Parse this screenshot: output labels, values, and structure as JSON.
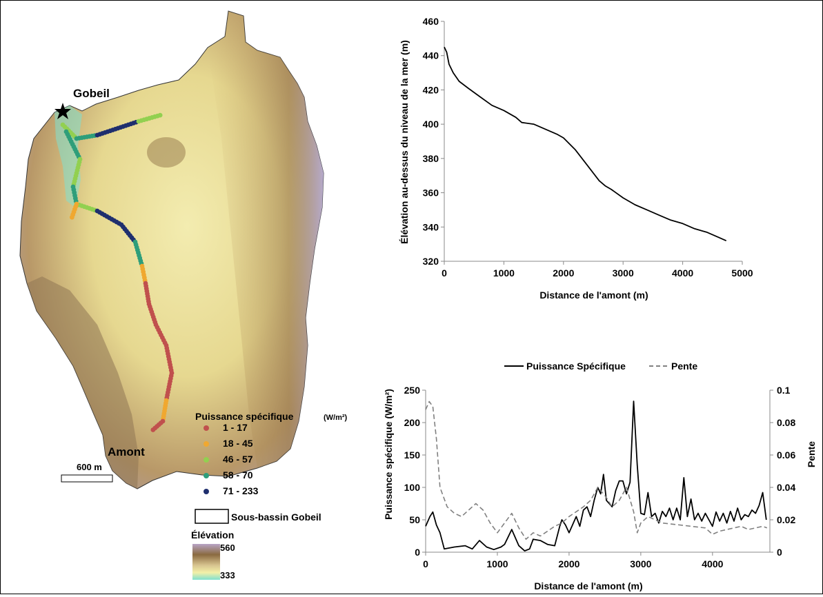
{
  "map": {
    "outlet_label": "Gobeil",
    "upstream_label": "Amont",
    "scale_label": "600 m",
    "legend": {
      "title": "Puissance spécifique",
      "unit": "(W/m²)",
      "classes": [
        {
          "label": "1 - 17",
          "color": "#c0504d"
        },
        {
          "label": "18 - 45",
          "color": "#f0a830"
        },
        {
          "label": "46 - 57",
          "color": "#92d050"
        },
        {
          "label": "58 - 70",
          "color": "#2e9e7a"
        },
        {
          "label": "71 - 233",
          "color": "#1f2f6e"
        }
      ],
      "subbasin_label": "Sous-bassin Gobeil",
      "elevation_title": "Élévation",
      "elevation_max": "560",
      "elevation_min": "333"
    }
  },
  "chart_data": [
    {
      "type": "line",
      "title": "",
      "xlabel": "Distance de l'amont (m)",
      "ylabel": "Élévation au-dessus du niveau de la mer (m)",
      "xlim": [
        0,
        5000
      ],
      "ylim": [
        320,
        460
      ],
      "xticks": [
        0,
        1000,
        2000,
        3000,
        4000,
        5000
      ],
      "yticks": [
        320,
        340,
        360,
        380,
        400,
        420,
        440,
        460
      ],
      "grid": false,
      "series": [
        {
          "color": "#000000",
          "points": [
            [
              0,
              445
            ],
            [
              40,
              442
            ],
            [
              80,
              435
            ],
            [
              150,
              430
            ],
            [
              250,
              425
            ],
            [
              400,
              421
            ],
            [
              600,
              416
            ],
            [
              800,
              411
            ],
            [
              1000,
              408
            ],
            [
              1200,
              404
            ],
            [
              1300,
              401
            ],
            [
              1500,
              400
            ],
            [
              1700,
              397
            ],
            [
              1900,
              394
            ],
            [
              2000,
              392
            ],
            [
              2200,
              385
            ],
            [
              2400,
              376
            ],
            [
              2600,
              367
            ],
            [
              2700,
              364
            ],
            [
              2800,
              362
            ],
            [
              3000,
              357
            ],
            [
              3200,
              353
            ],
            [
              3400,
              350
            ],
            [
              3600,
              347
            ],
            [
              3800,
              344
            ],
            [
              4000,
              342
            ],
            [
              4200,
              339
            ],
            [
              4400,
              337
            ],
            [
              4600,
              334
            ],
            [
              4730,
              332
            ]
          ]
        }
      ]
    },
    {
      "type": "line",
      "title": "",
      "xlabel": "Distance de l'amont (m)",
      "ylabel": "Puissance spécifique (W/m²)",
      "y2label": "Pente",
      "xlim": [
        0,
        4800
      ],
      "ylim": [
        0,
        250
      ],
      "y2lim": [
        0,
        0.1
      ],
      "xticks": [
        0,
        1000,
        2000,
        3000,
        4000
      ],
      "yticks": [
        0,
        50,
        100,
        150,
        200,
        250
      ],
      "y2ticks": [
        "0",
        "0.02",
        "0.04",
        "0.06",
        "0.08",
        "0.1"
      ],
      "legend_position": "top",
      "grid": false,
      "series": [
        {
          "name": "Puissance Spécifique",
          "axis": "left",
          "color": "#000000",
          "dash": "solid",
          "points": [
            [
              0,
              40
            ],
            [
              60,
              55
            ],
            [
              100,
              62
            ],
            [
              150,
              42
            ],
            [
              200,
              30
            ],
            [
              260,
              5
            ],
            [
              400,
              8
            ],
            [
              550,
              10
            ],
            [
              650,
              5
            ],
            [
              750,
              18
            ],
            [
              850,
              8
            ],
            [
              950,
              4
            ],
            [
              1050,
              8
            ],
            [
              1100,
              12
            ],
            [
              1200,
              35
            ],
            [
              1300,
              10
            ],
            [
              1380,
              2
            ],
            [
              1450,
              5
            ],
            [
              1500,
              20
            ],
            [
              1600,
              18
            ],
            [
              1700,
              12
            ],
            [
              1800,
              10
            ],
            [
              1870,
              40
            ],
            [
              1900,
              50
            ],
            [
              1950,
              42
            ],
            [
              2000,
              30
            ],
            [
              2100,
              55
            ],
            [
              2150,
              40
            ],
            [
              2200,
              65
            ],
            [
              2250,
              70
            ],
            [
              2300,
              55
            ],
            [
              2350,
              80
            ],
            [
              2400,
              100
            ],
            [
              2440,
              90
            ],
            [
              2480,
              120
            ],
            [
              2520,
              80
            ],
            [
              2600,
              70
            ],
            [
              2650,
              95
            ],
            [
              2700,
              110
            ],
            [
              2750,
              110
            ],
            [
              2800,
              90
            ],
            [
              2850,
              108
            ],
            [
              2900,
              233
            ],
            [
              2950,
              135
            ],
            [
              3000,
              60
            ],
            [
              3050,
              58
            ],
            [
              3100,
              92
            ],
            [
              3150,
              55
            ],
            [
              3200,
              60
            ],
            [
              3250,
              45
            ],
            [
              3300,
              63
            ],
            [
              3350,
              55
            ],
            [
              3400,
              68
            ],
            [
              3450,
              50
            ],
            [
              3500,
              68
            ],
            [
              3550,
              50
            ],
            [
              3600,
              115
            ],
            [
              3650,
              55
            ],
            [
              3700,
              82
            ],
            [
              3750,
              50
            ],
            [
              3800,
              60
            ],
            [
              3850,
              48
            ],
            [
              3900,
              60
            ],
            [
              3950,
              50
            ],
            [
              4000,
              40
            ],
            [
              4050,
              62
            ],
            [
              4100,
              48
            ],
            [
              4150,
              60
            ],
            [
              4200,
              45
            ],
            [
              4250,
              63
            ],
            [
              4300,
              48
            ],
            [
              4350,
              68
            ],
            [
              4400,
              50
            ],
            [
              4450,
              58
            ],
            [
              4500,
              55
            ],
            [
              4550,
              65
            ],
            [
              4600,
              60
            ],
            [
              4650,
              72
            ],
            [
              4700,
              92
            ],
            [
              4750,
              50
            ]
          ]
        },
        {
          "name": "Pente",
          "axis": "right",
          "color": "#808080",
          "dash": "dashed",
          "points": [
            [
              0,
              0.088
            ],
            [
              50,
              0.093
            ],
            [
              100,
              0.09
            ],
            [
              150,
              0.07
            ],
            [
              200,
              0.04
            ],
            [
              300,
              0.028
            ],
            [
              400,
              0.024
            ],
            [
              500,
              0.022
            ],
            [
              600,
              0.026
            ],
            [
              700,
              0.03
            ],
            [
              800,
              0.026
            ],
            [
              900,
              0.018
            ],
            [
              1000,
              0.012
            ],
            [
              1100,
              0.018
            ],
            [
              1200,
              0.024
            ],
            [
              1300,
              0.015
            ],
            [
              1400,
              0.008
            ],
            [
              1500,
              0.012
            ],
            [
              1600,
              0.01
            ],
            [
              1700,
              0.013
            ],
            [
              1800,
              0.016
            ],
            [
              1900,
              0.018
            ],
            [
              2000,
              0.022
            ],
            [
              2100,
              0.025
            ],
            [
              2200,
              0.028
            ],
            [
              2300,
              0.032
            ],
            [
              2400,
              0.04
            ],
            [
              2500,
              0.035
            ],
            [
              2600,
              0.028
            ],
            [
              2700,
              0.032
            ],
            [
              2800,
              0.04
            ],
            [
              2900,
              0.025
            ],
            [
              2950,
              0.012
            ],
            [
              3000,
              0.018
            ],
            [
              3100,
              0.022
            ],
            [
              3200,
              0.02
            ],
            [
              3300,
              0.018
            ],
            [
              3500,
              0.017
            ],
            [
              3700,
              0.016
            ],
            [
              3900,
              0.015
            ],
            [
              4000,
              0.011
            ],
            [
              4100,
              0.013
            ],
            [
              4200,
              0.014
            ],
            [
              4300,
              0.015
            ],
            [
              4400,
              0.016
            ],
            [
              4500,
              0.014
            ],
            [
              4600,
              0.015
            ],
            [
              4700,
              0.016
            ],
            [
              4760,
              0.015
            ]
          ]
        }
      ]
    }
  ]
}
